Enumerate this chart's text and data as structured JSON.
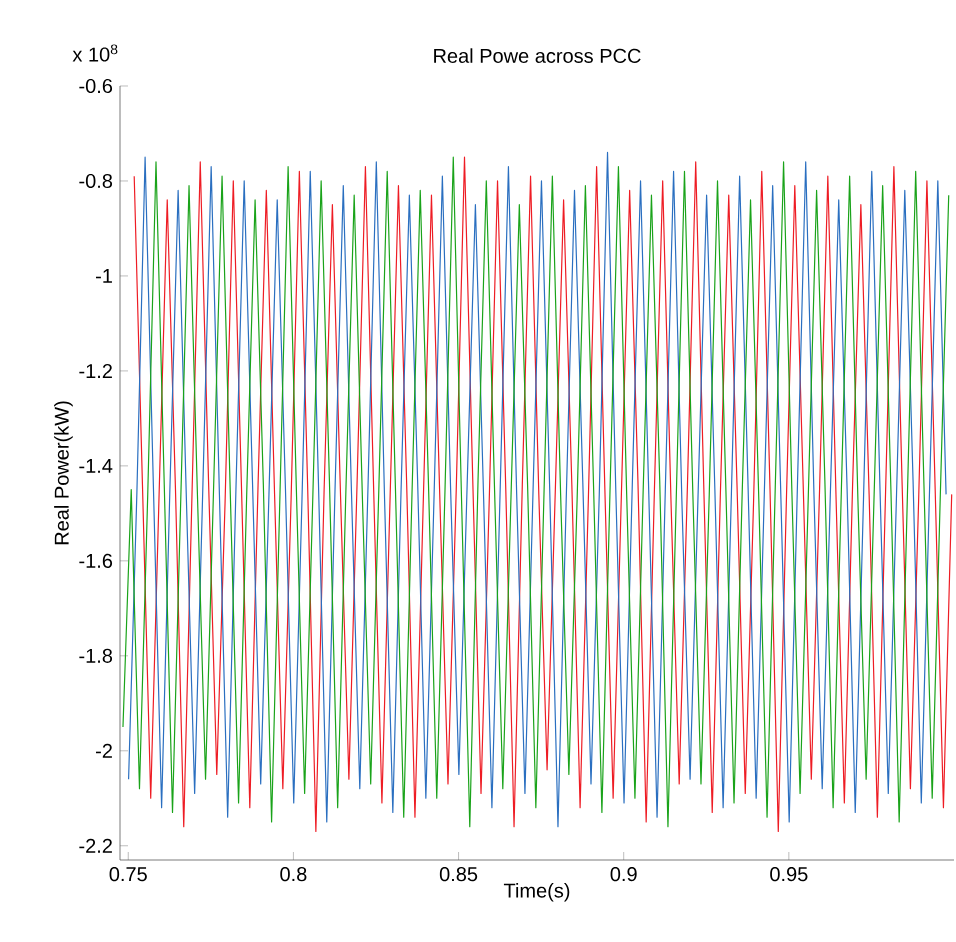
{
  "chart_data": {
    "type": "line",
    "title": "Real Powe across PCC",
    "xlabel": "Time(s)",
    "ylabel": "Real Power(kW)",
    "annotations": [
      "x 10$^{8}$"
    ],
    "xlim": [
      0.7475,
      1.0
    ],
    "ylim": [
      -2.23,
      -0.6
    ],
    "xticks": [
      0.75,
      0.8,
      0.85,
      0.9,
      0.95
    ],
    "yticks": [
      -0.6,
      -0.8,
      -1,
      -1.2,
      -1.4,
      -1.6,
      -1.8,
      -2,
      -2.2
    ],
    "grid": false,
    "marker": "none",
    "line_style": "solid",
    "series": [
      {
        "color": "#ee1c24",
        "x": [
          0.7518,
          0.7543,
          0.7568,
          0.7593,
          0.7618,
          0.7643,
          0.7668,
          0.7693,
          0.7718,
          0.7743,
          0.7768,
          0.7793,
          0.7818,
          0.7843,
          0.7868,
          0.7893,
          0.7918,
          0.7943,
          0.7968,
          0.7993,
          0.8018,
          0.8043,
          0.8068,
          0.8093,
          0.8118,
          0.8143,
          0.8168,
          0.8193,
          0.8218,
          0.8243,
          0.8268,
          0.8293,
          0.8318,
          0.8343,
          0.8368,
          0.8393,
          0.8418,
          0.8443,
          0.8468,
          0.8493,
          0.8518,
          0.8543,
          0.8568,
          0.8593,
          0.8618,
          0.8643,
          0.8668,
          0.8693,
          0.8718,
          0.8743,
          0.8768,
          0.8793,
          0.8818,
          0.8843,
          0.8868,
          0.8893,
          0.8918,
          0.8943,
          0.8968,
          0.8993,
          0.9018,
          0.9043,
          0.9068,
          0.9093,
          0.9118,
          0.9143,
          0.9168,
          0.9193,
          0.9218,
          0.9243,
          0.9268,
          0.9293,
          0.9318,
          0.9343,
          0.9368,
          0.9393,
          0.9418,
          0.9443,
          0.9468,
          0.9493,
          0.9518,
          0.9543,
          0.9568,
          0.9593,
          0.9618,
          0.9643,
          0.9668,
          0.9693,
          0.9718,
          0.9743,
          0.9768,
          0.9793,
          0.9818,
          0.9843,
          0.9868,
          0.9893,
          0.9918,
          0.9943,
          0.9968,
          0.9993
        ],
        "values": [
          -0.79,
          -1.44,
          -2.1,
          -1.47,
          -0.84,
          -1.45,
          -2.16,
          -1.46,
          -0.76,
          -1.43,
          -2.05,
          -1.48,
          -0.8,
          -1.45,
          -2.12,
          -1.44,
          -0.82,
          -1.46,
          -2.08,
          -1.47,
          -0.78,
          -1.44,
          -2.17,
          -1.45,
          -0.85,
          -1.47,
          -2.06,
          -1.43,
          -0.77,
          -1.45,
          -2.11,
          -1.46,
          -0.81,
          -1.44,
          -2.14,
          -1.48,
          -0.83,
          -1.46,
          -2.07,
          -1.45,
          -0.75,
          -1.43,
          -2.09,
          -1.47,
          -0.8,
          -1.45,
          -2.16,
          -1.44,
          -0.79,
          -1.46,
          -2.04,
          -1.45,
          -0.84,
          -1.44,
          -2.12,
          -1.47,
          -0.77,
          -1.45,
          -2.1,
          -1.46,
          -0.82,
          -1.43,
          -2.15,
          -1.45,
          -0.8,
          -1.47,
          -2.07,
          -1.44,
          -0.76,
          -1.46,
          -2.13,
          -1.45,
          -0.83,
          -1.44,
          -2.09,
          -1.48,
          -0.78,
          -1.45,
          -2.17,
          -1.46,
          -0.81,
          -1.43,
          -2.06,
          -1.45,
          -0.79,
          -1.47,
          -2.11,
          -1.44,
          -0.85,
          -1.46,
          -2.14,
          -1.45,
          -0.77,
          -1.44,
          -2.08,
          -1.47,
          -0.8,
          -1.45,
          -2.12,
          -1.46
        ]
      },
      {
        "color": "#2a6fc0",
        "x": [
          0.7501,
          0.7526,
          0.7551,
          0.7576,
          0.7601,
          0.7626,
          0.7651,
          0.7676,
          0.7701,
          0.7726,
          0.7751,
          0.7776,
          0.7801,
          0.7826,
          0.7851,
          0.7876,
          0.7901,
          0.7926,
          0.7951,
          0.7976,
          0.8001,
          0.8026,
          0.8051,
          0.8076,
          0.8101,
          0.8126,
          0.8151,
          0.8176,
          0.8201,
          0.8226,
          0.8251,
          0.8276,
          0.8301,
          0.8326,
          0.8351,
          0.8376,
          0.8401,
          0.8426,
          0.8451,
          0.8476,
          0.8501,
          0.8526,
          0.8551,
          0.8576,
          0.8601,
          0.8626,
          0.8651,
          0.8676,
          0.8701,
          0.8726,
          0.8751,
          0.8776,
          0.8801,
          0.8826,
          0.8851,
          0.8876,
          0.8901,
          0.8926,
          0.8951,
          0.8976,
          0.9001,
          0.9026,
          0.9051,
          0.9076,
          0.9101,
          0.9126,
          0.9151,
          0.9176,
          0.9201,
          0.9226,
          0.9251,
          0.9276,
          0.9301,
          0.9326,
          0.9351,
          0.9376,
          0.9401,
          0.9426,
          0.9451,
          0.9476,
          0.9501,
          0.9526,
          0.9551,
          0.9576,
          0.9601,
          0.9626,
          0.9651,
          0.9676,
          0.9701,
          0.9726,
          0.9751,
          0.9776,
          0.9801,
          0.9826,
          0.9851,
          0.9876,
          0.9901,
          0.9926,
          0.9951,
          0.9976
        ],
        "values": [
          -2.06,
          -1.46,
          -0.75,
          -1.44,
          -2.12,
          -1.45,
          -0.82,
          -1.47,
          -2.09,
          -1.44,
          -0.77,
          -1.46,
          -2.14,
          -1.45,
          -0.8,
          -1.43,
          -2.07,
          -1.46,
          -0.84,
          -1.45,
          -2.11,
          -1.47,
          -0.78,
          -1.44,
          -2.15,
          -1.45,
          -0.81,
          -1.46,
          -2.08,
          -1.44,
          -0.76,
          -1.47,
          -2.13,
          -1.45,
          -0.83,
          -1.43,
          -2.1,
          -1.46,
          -0.79,
          -1.45,
          -2.05,
          -1.44,
          -0.85,
          -1.47,
          -2.12,
          -1.45,
          -0.77,
          -1.46,
          -2.09,
          -1.44,
          -0.8,
          -1.45,
          -2.16,
          -1.47,
          -0.82,
          -1.43,
          -2.07,
          -1.46,
          -0.74,
          -1.45,
          -2.11,
          -1.44,
          -0.8,
          -1.46,
          -2.14,
          -1.45,
          -0.78,
          -1.47,
          -2.06,
          -1.44,
          -0.83,
          -1.45,
          -2.12,
          -1.46,
          -0.79,
          -1.43,
          -2.1,
          -1.45,
          -0.81,
          -1.47,
          -2.15,
          -1.44,
          -0.76,
          -1.46,
          -2.08,
          -1.45,
          -0.84,
          -1.44,
          -2.13,
          -1.47,
          -0.78,
          -1.45,
          -2.09,
          -1.46,
          -0.82,
          -1.43,
          -2.11,
          -1.45,
          -0.8,
          -1.46
        ]
      },
      {
        "color": "#1aa31a",
        "x": [
          0.7484,
          0.7509,
          0.7534,
          0.7559,
          0.7584,
          0.7609,
          0.7634,
          0.7659,
          0.7684,
          0.7709,
          0.7734,
          0.7759,
          0.7784,
          0.7809,
          0.7834,
          0.7859,
          0.7884,
          0.7909,
          0.7934,
          0.7959,
          0.7984,
          0.8009,
          0.8034,
          0.8059,
          0.8084,
          0.8109,
          0.8134,
          0.8159,
          0.8184,
          0.8209,
          0.8234,
          0.8259,
          0.8284,
          0.8309,
          0.8334,
          0.8359,
          0.8384,
          0.8409,
          0.8434,
          0.8459,
          0.8484,
          0.8509,
          0.8534,
          0.8559,
          0.8584,
          0.8609,
          0.8634,
          0.8659,
          0.8684,
          0.8709,
          0.8734,
          0.8759,
          0.8784,
          0.8809,
          0.8834,
          0.8859,
          0.8884,
          0.8909,
          0.8934,
          0.8959,
          0.8984,
          0.9009,
          0.9034,
          0.9059,
          0.9084,
          0.9109,
          0.9134,
          0.9159,
          0.9184,
          0.9209,
          0.9234,
          0.9259,
          0.9284,
          0.9309,
          0.9334,
          0.9359,
          0.9384,
          0.9409,
          0.9434,
          0.9459,
          0.9484,
          0.9509,
          0.9534,
          0.9559,
          0.9584,
          0.9609,
          0.9634,
          0.9659,
          0.9684,
          0.9709,
          0.9734,
          0.9759,
          0.9784,
          0.9809,
          0.9834,
          0.9859,
          0.9884,
          0.9909,
          0.9934,
          0.9959,
          0.9984
        ],
        "values": [
          -1.95,
          -1.45,
          -2.08,
          -1.46,
          -0.76,
          -1.44,
          -2.13,
          -1.47,
          -0.81,
          -1.45,
          -2.06,
          -1.43,
          -0.79,
          -1.46,
          -2.11,
          -1.45,
          -0.84,
          -1.44,
          -2.15,
          -1.47,
          -0.77,
          -1.45,
          -2.09,
          -1.46,
          -0.8,
          -1.43,
          -2.12,
          -1.45,
          -0.83,
          -1.47,
          -2.07,
          -1.44,
          -0.78,
          -1.45,
          -2.14,
          -1.46,
          -0.82,
          -1.44,
          -2.1,
          -1.45,
          -0.75,
          -1.47,
          -2.16,
          -1.43,
          -0.8,
          -1.45,
          -2.08,
          -1.46,
          -0.85,
          -1.44,
          -2.12,
          -1.45,
          -0.79,
          -1.46,
          -2.05,
          -1.47,
          -0.81,
          -1.45,
          -2.13,
          -1.44,
          -0.77,
          -1.46,
          -2.1,
          -1.45,
          -0.83,
          -1.43,
          -2.16,
          -1.47,
          -0.78,
          -1.45,
          -2.07,
          -1.46,
          -0.8,
          -1.44,
          -2.11,
          -1.45,
          -0.84,
          -1.47,
          -2.14,
          -1.44,
          -0.76,
          -1.45,
          -2.09,
          -1.46,
          -0.82,
          -1.43,
          -2.12,
          -1.45,
          -0.79,
          -1.47,
          -2.06,
          -1.44,
          -0.81,
          -1.45,
          -2.15,
          -1.46,
          -0.78,
          -1.44,
          -2.1,
          -1.45,
          -0.83
        ]
      }
    ]
  }
}
